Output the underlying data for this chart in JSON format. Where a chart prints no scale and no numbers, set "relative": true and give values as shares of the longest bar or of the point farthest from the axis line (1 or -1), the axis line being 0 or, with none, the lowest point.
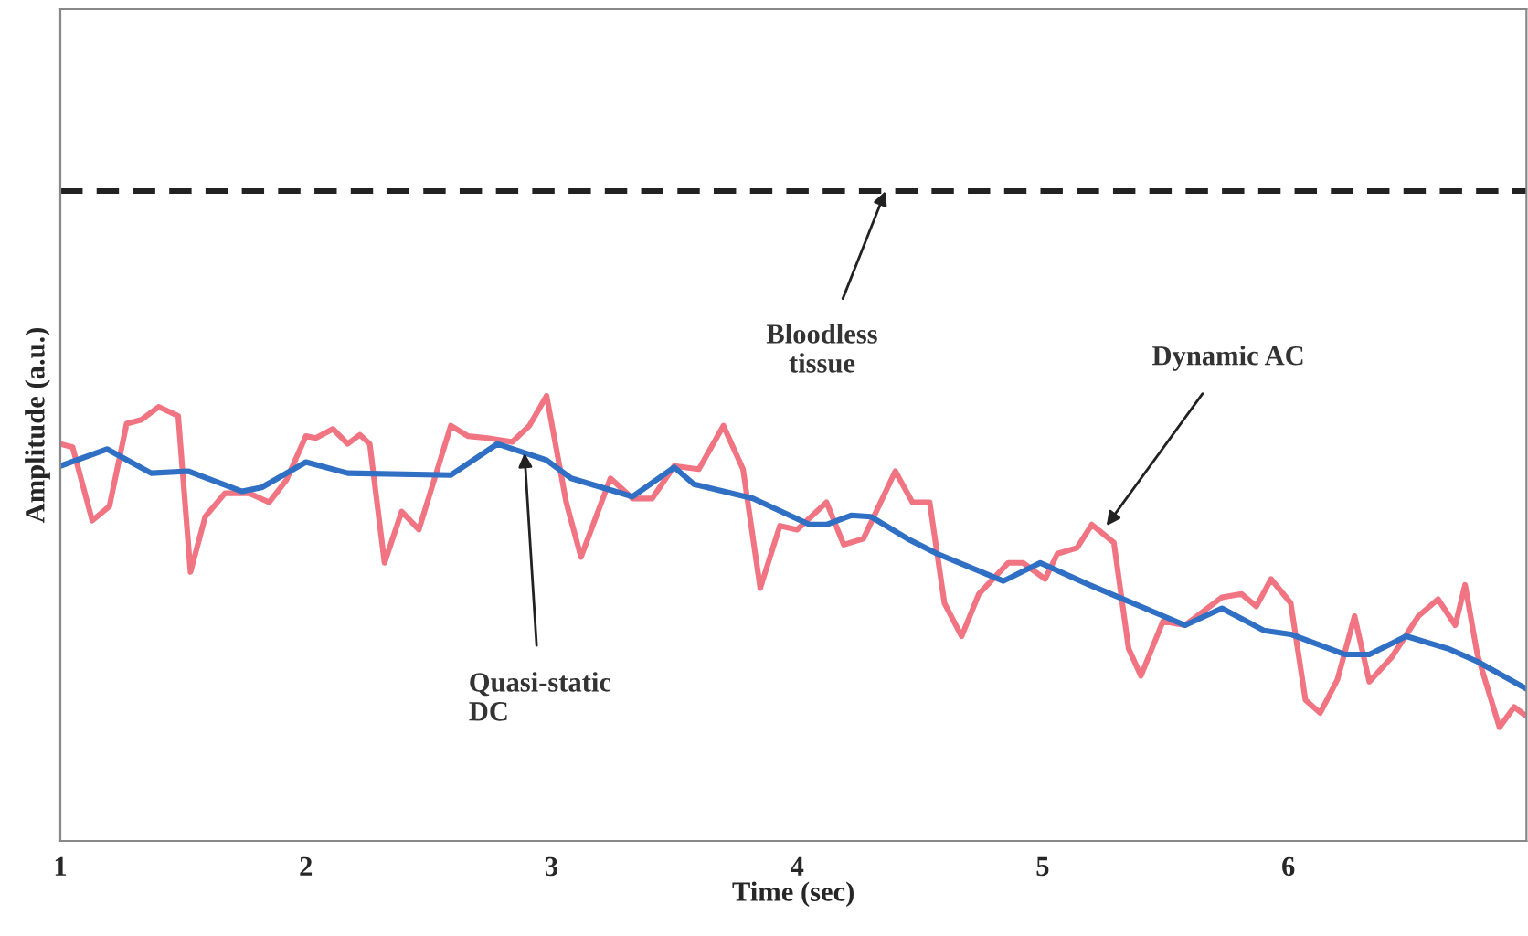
{
  "chart_data": {
    "type": "line",
    "relative": true,
    "xlabel": "Time (sec)",
    "ylabel": "Amplitude (a.u.)",
    "xlim": [
      1,
      6.97
    ],
    "xticks": [
      1,
      2,
      3,
      4,
      5,
      6
    ],
    "grid": false,
    "marker": "none",
    "series": [
      {
        "color": "#f07482",
        "line_style": "solid",
        "x": [
          1.0,
          1.05,
          1.13,
          1.2,
          1.27,
          1.33,
          1.4,
          1.48,
          1.53,
          1.59,
          1.67,
          1.77,
          1.85,
          1.92,
          2.0,
          2.04,
          2.11,
          2.17,
          2.22,
          2.26,
          2.32,
          2.39,
          2.46,
          2.59,
          2.66,
          2.74,
          2.84,
          2.91,
          2.98,
          3.06,
          3.12,
          3.24,
          3.33,
          3.41,
          3.5,
          3.6,
          3.7,
          3.78,
          3.85,
          3.93,
          4.0,
          4.12,
          4.19,
          4.27,
          4.4,
          4.47,
          4.54,
          4.6,
          4.67,
          4.74,
          4.86,
          4.92,
          5.01,
          5.06,
          5.14,
          5.2,
          5.29,
          5.35,
          5.4,
          5.49,
          5.58,
          5.73,
          5.81,
          5.87,
          5.93,
          6.01,
          6.07,
          6.13,
          6.2,
          6.27,
          6.33,
          6.42,
          6.53,
          6.61,
          6.68,
          6.72,
          6.77,
          6.86,
          6.92,
          6.97
        ],
        "values": [
          0.611,
          0.606,
          0.493,
          0.515,
          0.642,
          0.648,
          0.668,
          0.654,
          0.414,
          0.499,
          0.535,
          0.535,
          0.521,
          0.555,
          0.623,
          0.62,
          0.634,
          0.611,
          0.625,
          0.611,
          0.428,
          0.507,
          0.479,
          0.639,
          0.623,
          0.62,
          0.614,
          0.639,
          0.685,
          0.521,
          0.437,
          0.558,
          0.527,
          0.527,
          0.577,
          0.572,
          0.639,
          0.572,
          0.389,
          0.485,
          0.479,
          0.521,
          0.456,
          0.465,
          0.569,
          0.521,
          0.521,
          0.366,
          0.315,
          0.38,
          0.428,
          0.428,
          0.403,
          0.442,
          0.451,
          0.487,
          0.459,
          0.296,
          0.254,
          0.338,
          0.332,
          0.375,
          0.38,
          0.361,
          0.403,
          0.366,
          0.217,
          0.197,
          0.248,
          0.346,
          0.245,
          0.282,
          0.346,
          0.372,
          0.332,
          0.394,
          0.287,
          0.175,
          0.206,
          0.192
        ]
      },
      {
        "color": "#2f6fc4",
        "line_style": "solid",
        "x": [
          1.0,
          1.19,
          1.37,
          1.52,
          1.74,
          1.82,
          2.0,
          2.17,
          2.59,
          2.78,
          2.98,
          3.08,
          3.33,
          3.5,
          3.58,
          3.82,
          4.05,
          4.12,
          4.22,
          4.3,
          4.45,
          4.57,
          4.84,
          4.99,
          5.19,
          5.58,
          5.73,
          5.9,
          6.01,
          6.23,
          6.33,
          6.48,
          6.65,
          6.77,
          6.97
        ],
        "values": [
          0.577,
          0.603,
          0.566,
          0.569,
          0.538,
          0.544,
          0.583,
          0.566,
          0.563,
          0.611,
          0.586,
          0.558,
          0.53,
          0.575,
          0.549,
          0.527,
          0.487,
          0.487,
          0.501,
          0.499,
          0.465,
          0.442,
          0.4,
          0.428,
          0.394,
          0.332,
          0.358,
          0.324,
          0.318,
          0.287,
          0.287,
          0.315,
          0.296,
          0.276,
          0.234
        ]
      },
      {
        "color": "#222222",
        "line_style": "dashed",
        "x": [
          1.0,
          6.97
        ],
        "values": [
          1,
          1
        ]
      }
    ],
    "annotations": [
      {
        "text": "Bloodless\ntissue",
        "x": 4.36,
        "y": 1
      },
      {
        "text": "Quasi-static\nDC",
        "x": 2.89,
        "y": 0.597
      },
      {
        "text": "Dynamic AC",
        "x": 5.26,
        "y": 0.485
      }
    ]
  }
}
